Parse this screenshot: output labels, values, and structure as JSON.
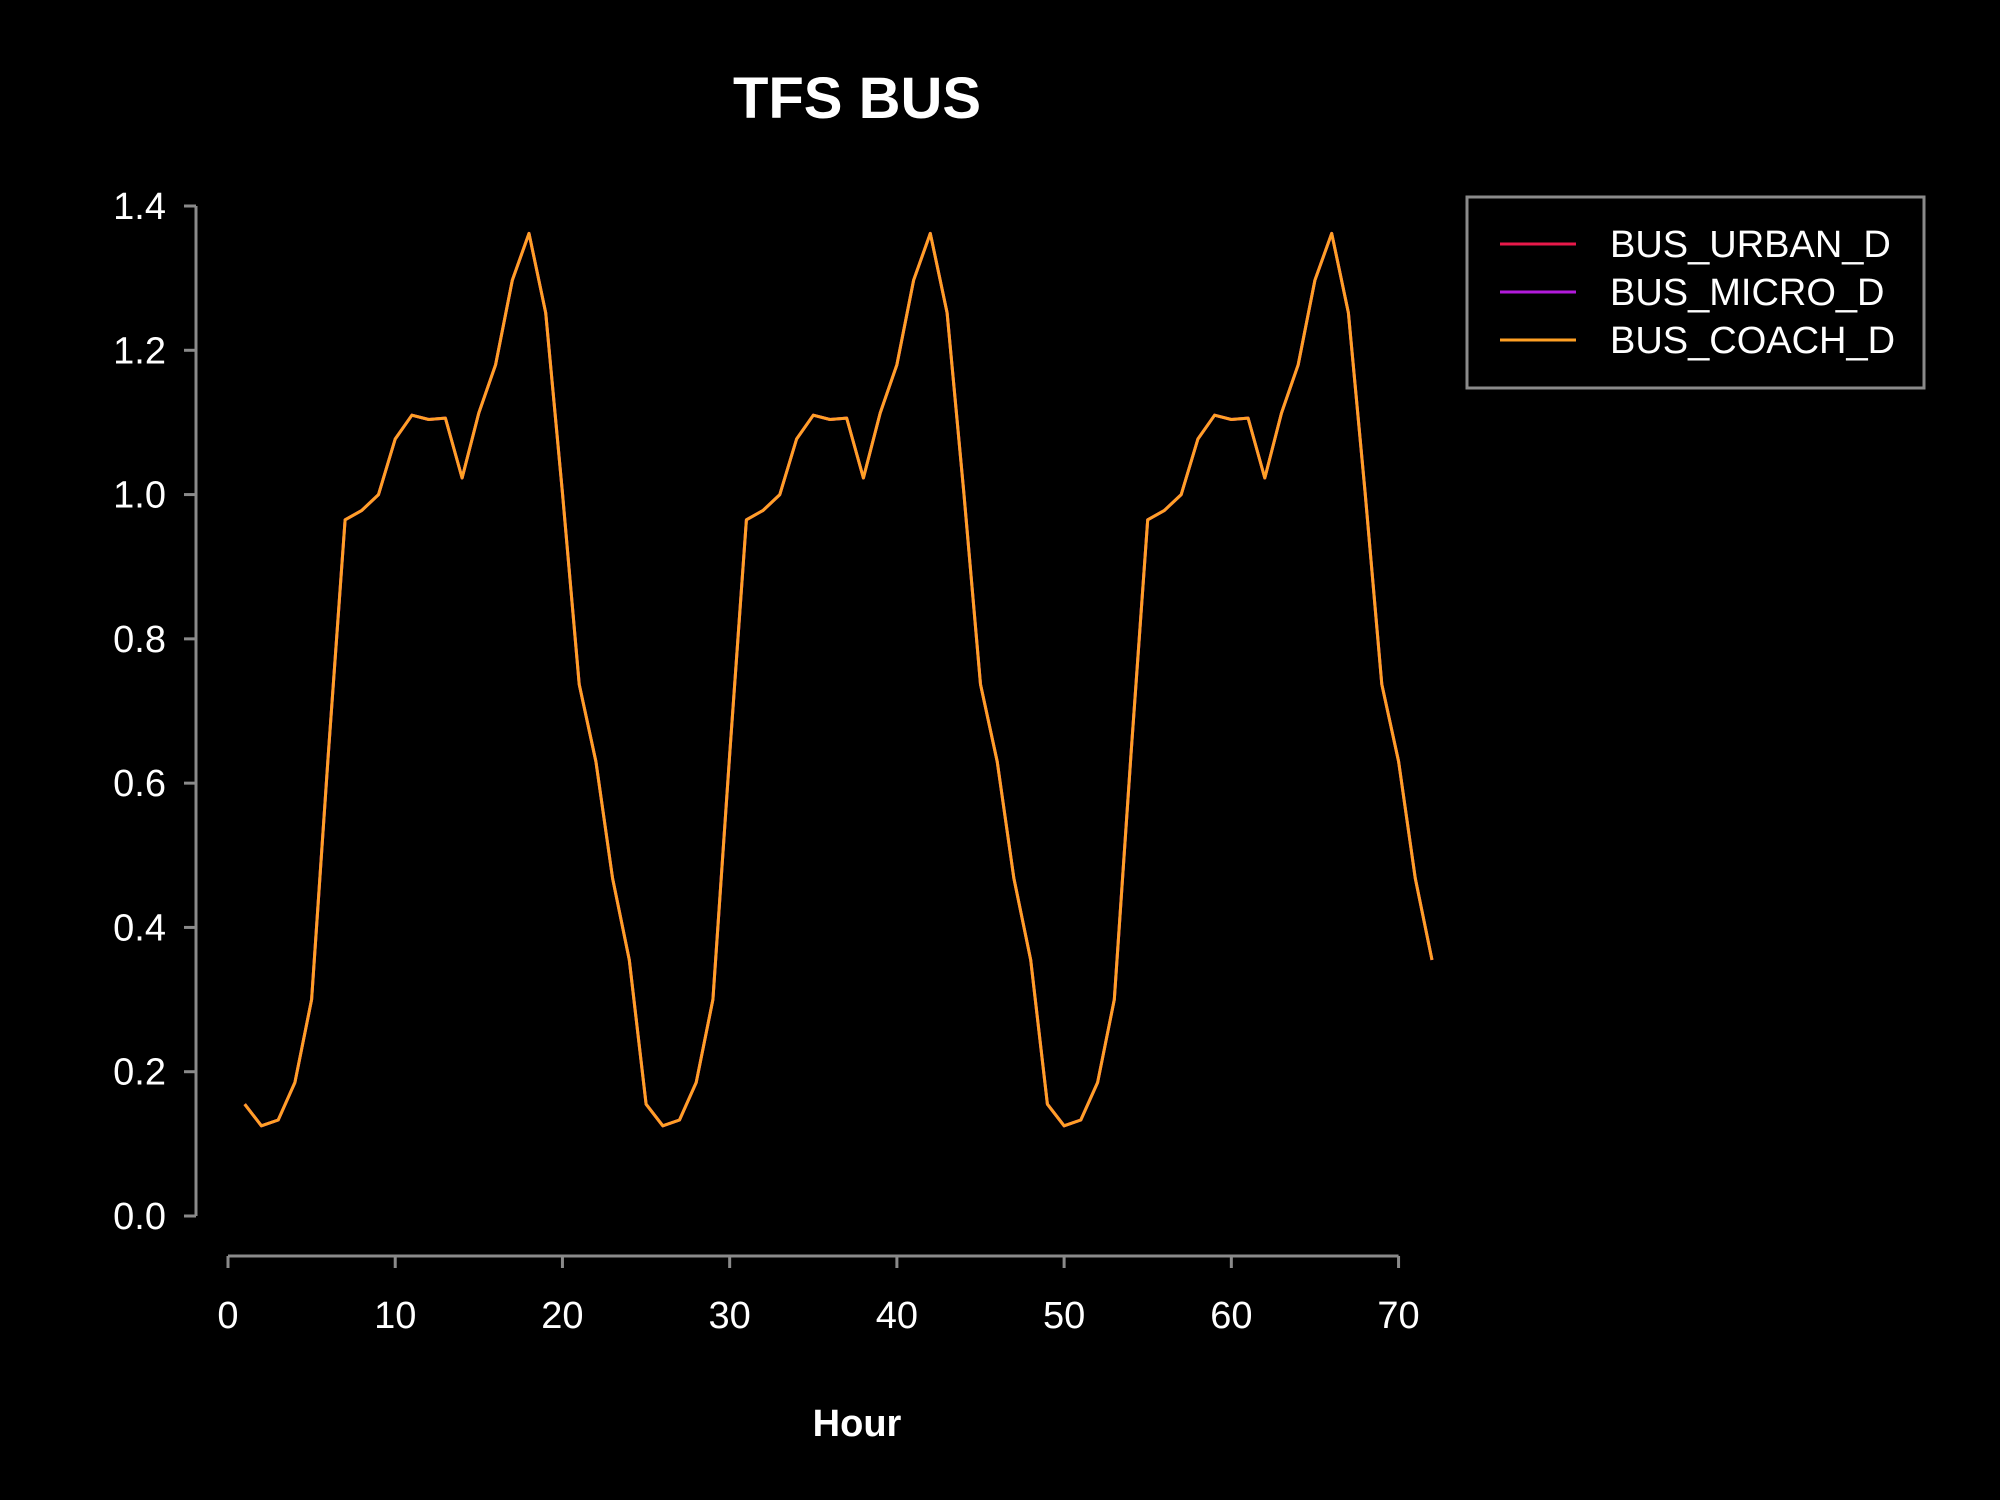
{
  "chart_data": {
    "type": "line",
    "title": "TFS BUS",
    "xlabel": "Hour",
    "ylabel": "",
    "xlim": [
      0,
      72
    ],
    "ylim": [
      0,
      1.4
    ],
    "x_ticks": [
      "0",
      "10",
      "20",
      "30",
      "40",
      "50",
      "60",
      "70"
    ],
    "y_ticks": [
      "0.0",
      "0.2",
      "0.4",
      "0.6",
      "0.8",
      "1.0",
      "1.2",
      "1.4"
    ],
    "legend_position": "top-right",
    "x": [
      1,
      2,
      3,
      4,
      5,
      6,
      7,
      8,
      9,
      10,
      11,
      12,
      13,
      14,
      15,
      16,
      17,
      18,
      19,
      20,
      21,
      22,
      23,
      24,
      25,
      26,
      27,
      28,
      29,
      30,
      31,
      32,
      33,
      34,
      35,
      36,
      37,
      38,
      39,
      40,
      41,
      42,
      43,
      44,
      45,
      46,
      47,
      48,
      49,
      50,
      51,
      52,
      53,
      54,
      55,
      56,
      57,
      58,
      59,
      60,
      61,
      62,
      63,
      64,
      65,
      66,
      67,
      68,
      69,
      70,
      71,
      72
    ],
    "series": [
      {
        "name": "BUS_URBAN_D",
        "color": "#e8194a",
        "values": [
          0.155,
          0.125,
          0.133,
          0.185,
          0.3,
          0.64,
          0.965,
          0.978,
          1.0,
          1.077,
          1.11,
          1.104,
          1.106,
          1.023,
          1.113,
          1.18,
          1.297,
          1.362,
          1.252,
          1.003,
          0.737,
          0.63,
          0.468,
          0.355,
          0.155,
          0.125,
          0.133,
          0.185,
          0.3,
          0.64,
          0.965,
          0.978,
          1.0,
          1.077,
          1.11,
          1.104,
          1.106,
          1.023,
          1.113,
          1.18,
          1.297,
          1.362,
          1.252,
          1.003,
          0.737,
          0.63,
          0.468,
          0.355,
          0.155,
          0.125,
          0.133,
          0.185,
          0.3,
          0.64,
          0.965,
          0.978,
          1.0,
          1.077,
          1.11,
          1.104,
          1.106,
          1.023,
          1.113,
          1.18,
          1.297,
          1.362,
          1.252,
          1.003,
          0.737,
          0.63,
          0.468,
          0.355
        ]
      },
      {
        "name": "BUS_MICRO_D",
        "color": "#b21adb",
        "values": [
          0.155,
          0.125,
          0.133,
          0.185,
          0.3,
          0.64,
          0.965,
          0.978,
          1.0,
          1.077,
          1.11,
          1.104,
          1.106,
          1.023,
          1.113,
          1.18,
          1.297,
          1.362,
          1.252,
          1.003,
          0.737,
          0.63,
          0.468,
          0.355,
          0.155,
          0.125,
          0.133,
          0.185,
          0.3,
          0.64,
          0.965,
          0.978,
          1.0,
          1.077,
          1.11,
          1.104,
          1.106,
          1.023,
          1.113,
          1.18,
          1.297,
          1.362,
          1.252,
          1.003,
          0.737,
          0.63,
          0.468,
          0.355,
          0.155,
          0.125,
          0.133,
          0.185,
          0.3,
          0.64,
          0.965,
          0.978,
          1.0,
          1.077,
          1.11,
          1.104,
          1.106,
          1.023,
          1.113,
          1.18,
          1.297,
          1.362,
          1.252,
          1.003,
          0.737,
          0.63,
          0.468,
          0.355
        ]
      },
      {
        "name": "BUS_COACH_D",
        "color": "#ffa024",
        "values": [
          0.155,
          0.125,
          0.133,
          0.185,
          0.3,
          0.64,
          0.965,
          0.978,
          1.0,
          1.077,
          1.11,
          1.104,
          1.106,
          1.023,
          1.113,
          1.18,
          1.297,
          1.362,
          1.252,
          1.003,
          0.737,
          0.63,
          0.468,
          0.355,
          0.155,
          0.125,
          0.133,
          0.185,
          0.3,
          0.64,
          0.965,
          0.978,
          1.0,
          1.077,
          1.11,
          1.104,
          1.106,
          1.023,
          1.113,
          1.18,
          1.297,
          1.362,
          1.252,
          1.003,
          0.737,
          0.63,
          0.468,
          0.355,
          0.155,
          0.125,
          0.133,
          0.185,
          0.3,
          0.64,
          0.965,
          0.978,
          1.0,
          1.077,
          1.11,
          1.104,
          1.106,
          1.023,
          1.113,
          1.18,
          1.297,
          1.362,
          1.252,
          1.003,
          0.737,
          0.63,
          0.468,
          0.355
        ]
      }
    ]
  }
}
